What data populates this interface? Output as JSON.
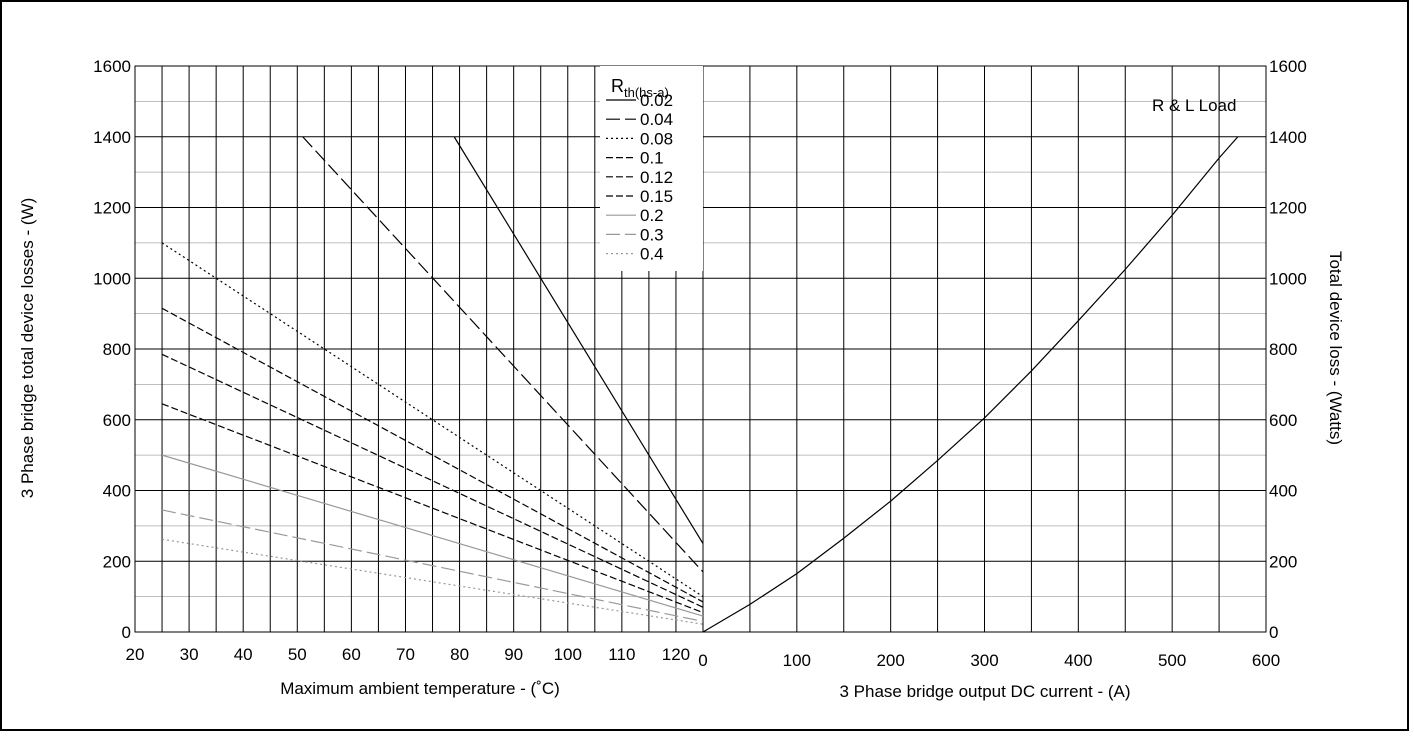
{
  "chart_data": [
    {
      "type": "line",
      "xlabel": "Maximum ambient temperature - (˚C)",
      "ylabel": "3 Phase bridge total device losses - (W)",
      "xlim": [
        20,
        125
      ],
      "ylim": [
        0,
        1600
      ],
      "x_ticks": [
        "20",
        "30",
        "40",
        "50",
        "60",
        "70",
        "80",
        "90",
        "100",
        "110",
        "120"
      ],
      "y_ticks": [
        "0",
        "200",
        "400",
        "600",
        "800",
        "1000",
        "1200",
        "1400",
        "1600"
      ],
      "grid": true,
      "legend": {
        "title_main": "R",
        "title_sub": "th(hs-a)",
        "placement": "top-right"
      },
      "series": [
        {
          "name": "0.02",
          "color": "#000000",
          "dash": "solid",
          "x": [
            79,
            125
          ],
          "y": [
            1400,
            250
          ]
        },
        {
          "name": "0.04",
          "color": "#000000",
          "dash": "longdash",
          "x": [
            51,
            125
          ],
          "y": [
            1400,
            170
          ]
        },
        {
          "name": "0.08",
          "color": "#000000",
          "dash": "dot",
          "x": [
            25,
            125
          ],
          "y": [
            1100,
            100
          ]
        },
        {
          "name": "0.1",
          "color": "#000000",
          "dash": "dash",
          "x": [
            25,
            125
          ],
          "y": [
            915,
            85
          ]
        },
        {
          "name": "0.12",
          "color": "#000000",
          "dash": "dash",
          "x": [
            25,
            125
          ],
          "y": [
            785,
            70
          ]
        },
        {
          "name": "0.15",
          "color": "#000000",
          "dash": "dash",
          "x": [
            25,
            125
          ],
          "y": [
            645,
            55
          ]
        },
        {
          "name": "0.2",
          "color": "#999999",
          "dash": "solid",
          "x": [
            25,
            125
          ],
          "y": [
            500,
            45
          ]
        },
        {
          "name": "0.3",
          "color": "#999999",
          "dash": "longdash",
          "x": [
            25,
            125
          ],
          "y": [
            345,
            30
          ]
        },
        {
          "name": "0.4",
          "color": "#999999",
          "dash": "dot",
          "x": [
            25,
            125
          ],
          "y": [
            262,
            22
          ]
        }
      ]
    },
    {
      "type": "line",
      "title": "R & L Load",
      "xlabel": "3 Phase bridge output DC current - (A)",
      "ylabel": "Total device loss - (Watts)",
      "xlim": [
        0,
        600
      ],
      "ylim": [
        0,
        1600
      ],
      "x_ticks": [
        "0",
        "100",
        "200",
        "300",
        "400",
        "500",
        "600"
      ],
      "y_ticks": [
        "0",
        "200",
        "400",
        "600",
        "800",
        "1000",
        "1200",
        "1400",
        "1600"
      ],
      "grid": true,
      "series": [
        {
          "color": "#000000",
          "x": [
            0,
            50,
            100,
            150,
            200,
            250,
            300,
            350,
            400,
            450,
            500,
            550,
            570
          ],
          "y": [
            0,
            78,
            165,
            265,
            370,
            485,
            605,
            738,
            880,
            1025,
            1178,
            1340,
            1400
          ]
        }
      ]
    }
  ]
}
